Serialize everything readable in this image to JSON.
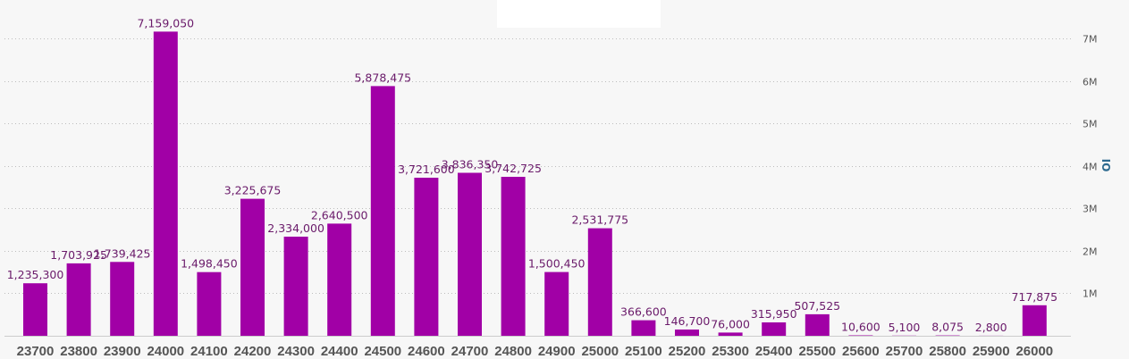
{
  "chart_data": {
    "type": "bar",
    "categories": [
      "23700",
      "23800",
      "23900",
      "24000",
      "24100",
      "24200",
      "24300",
      "24400",
      "24500",
      "24600",
      "24700",
      "24800",
      "24900",
      "25000",
      "25100",
      "25200",
      "25300",
      "25400",
      "25500",
      "25600",
      "25700",
      "25800",
      "25900",
      "26000"
    ],
    "values": [
      1235300,
      1703925,
      1739425,
      7159050,
      1498450,
      3225675,
      2334000,
      2640500,
      5878475,
      3721600,
      3836350,
      3742725,
      1500450,
      2531775,
      366600,
      146700,
      76000,
      315950,
      507525,
      10600,
      5100,
      8075,
      2800,
      717875
    ],
    "data_labels": [
      "1,235,300",
      "1,703,925",
      "1,739,425",
      "7,159,050",
      "1,498,450",
      "3,225,675",
      "2,334,000",
      "2,640,500",
      "5,878,475",
      "3,721,600",
      "3,836,350",
      "3,742,725",
      "1,500,450",
      "2,531,775",
      "366,600",
      "146,700",
      "76,000",
      "315,950",
      "507,525",
      "10,600",
      "5,100",
      "8,075",
      "2,800",
      "717,875"
    ],
    "ylabel": "OI",
    "y_ticks": [
      {
        "value": 1000000,
        "label": "1M"
      },
      {
        "value": 2000000,
        "label": "2M"
      },
      {
        "value": 3000000,
        "label": "3M"
      },
      {
        "value": 4000000,
        "label": "4M"
      },
      {
        "value": 5000000,
        "label": "5M"
      },
      {
        "value": 6000000,
        "label": "6M"
      },
      {
        "value": 7000000,
        "label": "7M"
      }
    ],
    "ylim": [
      0,
      7000000
    ],
    "y_axis_side": "right",
    "grid": true,
    "colors": {
      "bar": "#a100a6",
      "label": "#6a1a6a",
      "background": "#f7f7f7",
      "axis_title": "#2d6a8f"
    }
  }
}
